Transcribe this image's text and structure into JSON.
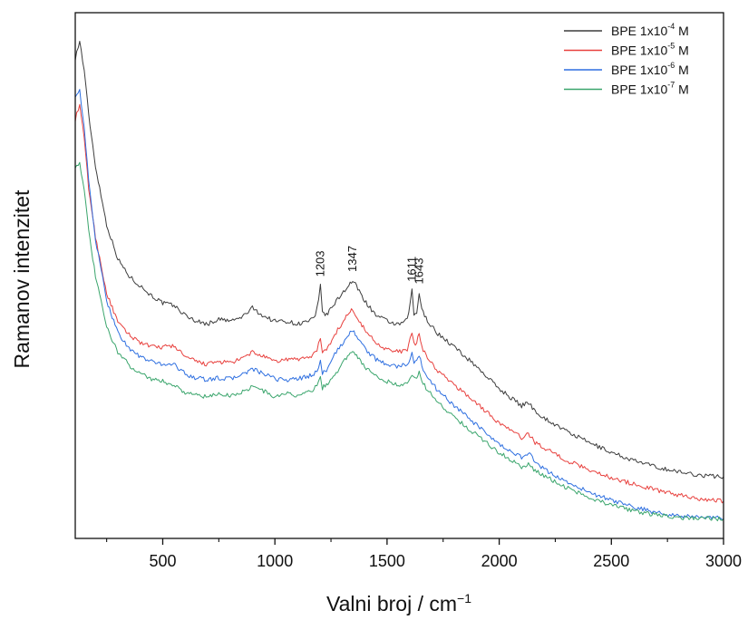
{
  "chart_data": {
    "type": "line",
    "title": "",
    "xlabel": "Valni broj / cm",
    "xlabel_sup": "−1",
    "ylabel": "Ramanov intenzitet",
    "xlim": [
      110,
      3000
    ],
    "ylim": [
      0,
      1000
    ],
    "xticks": [
      500,
      1000,
      1500,
      2000,
      2500,
      3000
    ],
    "x_minor_ticks": [
      250,
      750,
      1250,
      1750,
      2250,
      2750
    ],
    "yticks_shown": false,
    "grid": false,
    "legend_position": "top-right",
    "series": [
      {
        "name": "BPE 1x10",
        "name_sup": "-4",
        "name_suffix": " M",
        "color": "#3c3c3c",
        "x": [
          110,
          130,
          150,
          170,
          200,
          250,
          300,
          350,
          400,
          450,
          500,
          550,
          600,
          650,
          700,
          750,
          800,
          850,
          900,
          950,
          1000,
          1050,
          1100,
          1150,
          1180,
          1195,
          1203,
          1212,
          1230,
          1260,
          1300,
          1330,
          1347,
          1370,
          1400,
          1450,
          1500,
          1550,
          1590,
          1603,
          1611,
          1620,
          1632,
          1643,
          1655,
          1680,
          1720,
          1800,
          1900,
          2000,
          2100,
          2130,
          2160,
          2200,
          2300,
          2400,
          2500,
          2600,
          2700,
          2800,
          2900,
          3000
        ],
        "y": [
          955,
          990,
          930,
          840,
          735,
          615,
          545,
          510,
          490,
          470,
          455,
          450,
          430,
          418,
          412,
          422,
          418,
          425,
          445,
          428,
          418,
          418,
          412,
          418,
          425,
          460,
          490,
          438,
          430,
          450,
          475,
          492,
          500,
          485,
          460,
          430,
          418,
          410,
          420,
          455,
          480,
          430,
          435,
          475,
          440,
          420,
          395,
          365,
          325,
          280,
          245,
          252,
          235,
          220,
          193,
          170,
          150,
          133,
          120,
          110,
          103,
          100
        ]
      },
      {
        "name": "BPE 1x10",
        "name_sup": "-5",
        "name_suffix": " M",
        "color": "#e8413e",
        "x": [
          110,
          130,
          150,
          170,
          200,
          250,
          300,
          350,
          400,
          450,
          500,
          550,
          600,
          650,
          700,
          750,
          800,
          850,
          900,
          950,
          1000,
          1050,
          1100,
          1150,
          1180,
          1195,
          1203,
          1212,
          1230,
          1260,
          1300,
          1330,
          1347,
          1370,
          1400,
          1450,
          1500,
          1550,
          1590,
          1603,
          1611,
          1620,
          1632,
          1643,
          1655,
          1680,
          1720,
          1800,
          1900,
          2000,
          2100,
          2130,
          2160,
          2200,
          2300,
          2400,
          2500,
          2600,
          2700,
          2800,
          2900,
          3000
        ],
        "y": [
          830,
          860,
          790,
          690,
          590,
          475,
          415,
          390,
          375,
          365,
          365,
          368,
          345,
          335,
          330,
          335,
          333,
          340,
          355,
          345,
          335,
          340,
          340,
          345,
          352,
          370,
          385,
          355,
          358,
          385,
          415,
          435,
          442,
          425,
          400,
          375,
          360,
          355,
          360,
          380,
          395,
          370,
          372,
          395,
          365,
          345,
          318,
          288,
          250,
          210,
          180,
          188,
          170,
          160,
          133,
          115,
          98,
          85,
          73,
          63,
          55,
          50
        ]
      },
      {
        "name": "BPE 1x10",
        "name_sup": "-6",
        "name_suffix": " M",
        "color": "#2e6fe0",
        "x": [
          110,
          130,
          150,
          170,
          200,
          250,
          300,
          350,
          400,
          450,
          500,
          550,
          600,
          650,
          700,
          750,
          800,
          850,
          900,
          950,
          1000,
          1050,
          1100,
          1150,
          1180,
          1195,
          1203,
          1212,
          1230,
          1260,
          1300,
          1330,
          1347,
          1370,
          1400,
          1450,
          1500,
          1550,
          1590,
          1603,
          1611,
          1620,
          1632,
          1643,
          1655,
          1680,
          1720,
          1800,
          1900,
          2000,
          2100,
          2130,
          2160,
          2200,
          2300,
          2400,
          2500,
          2600,
          2700,
          2800,
          2900,
          3000
        ],
        "y": [
          880,
          890,
          810,
          705,
          585,
          460,
          395,
          362,
          345,
          335,
          330,
          330,
          310,
          302,
          298,
          302,
          300,
          308,
          320,
          310,
          300,
          298,
          300,
          305,
          312,
          325,
          338,
          312,
          318,
          345,
          372,
          390,
          400,
          385,
          362,
          340,
          330,
          325,
          330,
          342,
          352,
          332,
          335,
          350,
          325,
          305,
          280,
          245,
          205,
          165,
          140,
          150,
          130,
          115,
          90,
          68,
          52,
          38,
          27,
          20,
          17,
          15
        ]
      },
      {
        "name": "BPE 1x10",
        "name_sup": "-7",
        "name_suffix": " M",
        "color": "#3aa56c",
        "x": [
          110,
          130,
          150,
          170,
          200,
          250,
          300,
          350,
          400,
          450,
          500,
          550,
          600,
          650,
          700,
          750,
          800,
          850,
          900,
          950,
          1000,
          1050,
          1100,
          1150,
          1180,
          1195,
          1203,
          1212,
          1230,
          1260,
          1300,
          1330,
          1347,
          1370,
          1400,
          1450,
          1500,
          1550,
          1590,
          1603,
          1611,
          1620,
          1632,
          1643,
          1655,
          1680,
          1720,
          1800,
          1900,
          2000,
          2100,
          2130,
          2160,
          2200,
          2300,
          2400,
          2500,
          2600,
          2700,
          2800,
          2900,
          3000
        ],
        "y": [
          735,
          740,
          690,
          600,
          510,
          405,
          355,
          328,
          312,
          300,
          295,
          288,
          272,
          268,
          262,
          270,
          266,
          272,
          285,
          275,
          263,
          270,
          266,
          272,
          282,
          296,
          302,
          282,
          288,
          305,
          330,
          350,
          360,
          345,
          325,
          305,
          295,
          288,
          290,
          300,
          310,
          300,
          305,
          312,
          295,
          278,
          255,
          222,
          185,
          150,
          120,
          126,
          112,
          102,
          78,
          58,
          42,
          30,
          22,
          17,
          15,
          14
        ]
      }
    ],
    "annotations": [
      {
        "text": "1203",
        "x": 1203,
        "y": 490
      },
      {
        "text": "1347",
        "x": 1347,
        "y": 500
      },
      {
        "text": "1611",
        "x": 1611,
        "y": 480
      },
      {
        "text": "1643",
        "x": 1643,
        "y": 475
      }
    ]
  }
}
